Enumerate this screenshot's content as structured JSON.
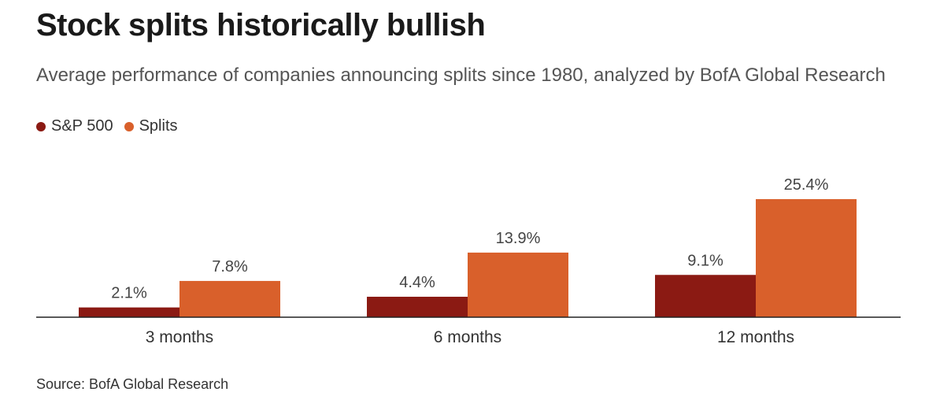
{
  "title": "Stock splits historically bullish",
  "subtitle": "Average performance of companies announcing splits since 1980, analyzed by BofA Global Research",
  "source": "Source: BofA Global Research",
  "legend": [
    {
      "label": "S&P 500",
      "color": "#8B1A13"
    },
    {
      "label": "Splits",
      "color": "#D9602B"
    }
  ],
  "chart_data": {
    "type": "bar",
    "categories": [
      "3 months",
      "6 months",
      "12 months"
    ],
    "series": [
      {
        "name": "S&P 500",
        "values": [
          2.1,
          4.4,
          9.1
        ],
        "labels": [
          "2.1%",
          "4.4%",
          "9.1%"
        ],
        "color": "#8B1A13"
      },
      {
        "name": "Splits",
        "values": [
          7.8,
          13.9,
          25.4
        ],
        "labels": [
          "7.8%",
          "13.9%",
          "25.4%"
        ],
        "color": "#D9602B"
      }
    ],
    "title": "Stock splits historically bullish",
    "subtitle": "Average performance of companies announcing splits since 1980, analyzed by BofA Global Research",
    "xlabel": "",
    "ylabel": "",
    "ylim": [
      0,
      25.4
    ],
    "grid": false,
    "legend_position": "top-left"
  }
}
